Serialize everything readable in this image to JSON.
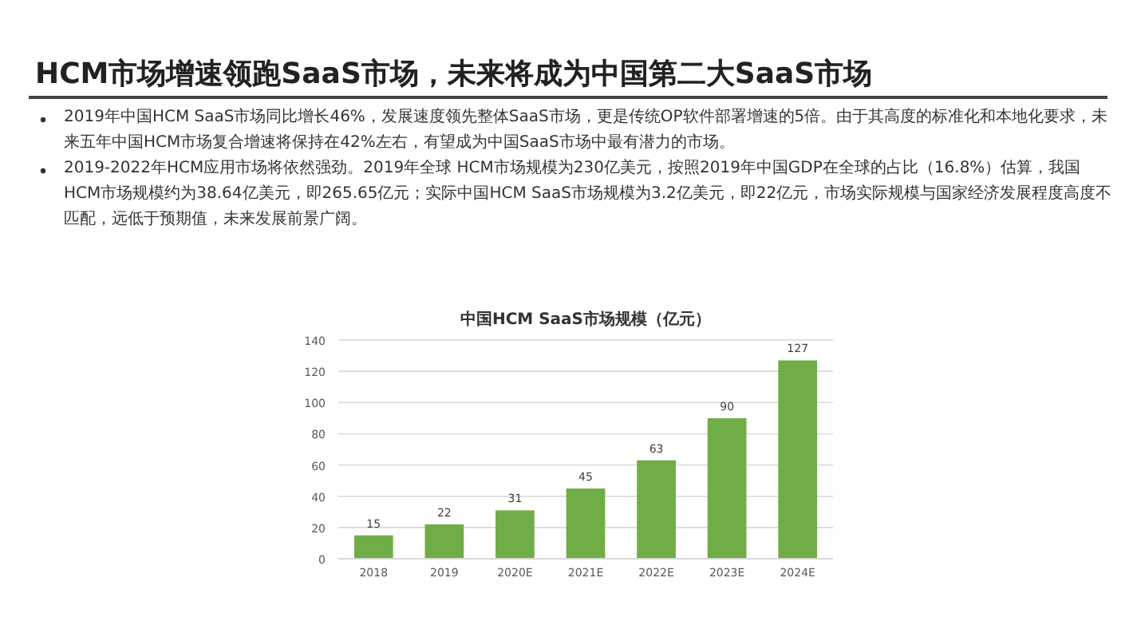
{
  "chart_data": {
    "type": "bar",
    "title": "HCM市场增速领跑SaaS市场，未来将成为中国第二大SaaS市场",
    "subtitle": "中国HCM SaaS市场规模（亿元）",
    "annotations": [
      "2019年中国HCM SaaS市场同比增长46%，发展速度领先整体SaaS市场，更是传统OP软件部署增速的5倍。由于其高度的标准化和本地化要求，未来五年中国HCM市场复合增速将保持在42%左右，有望成为中国SaaS市场中最有潜力的市场。",
      "2019-2022年HCM应用市场将依然强劲。2019年全球 HCM市场规模为230亿美元，按照2019年中国GDP在全球的占比（16.8%）估算，我国HCM市场规模约为38.64亿美元，即265.65亿元；实际中国HCM SaaS市场规模为3.2亿美元，即22亿元，市场实际规模与国家经济发展程度高度不匹配，远低于预期值，未来发展前景广阔。"
    ],
    "categories": [
      "2018",
      "2019",
      "2020E",
      "2021E",
      "2022E",
      "2023E",
      "2024E"
    ],
    "values": [
      15,
      22,
      31,
      45,
      63,
      90,
      127
    ],
    "color": "#70ad47",
    "ylim": [
      0,
      140
    ],
    "yticks": [
      0,
      20,
      40,
      60,
      80,
      100,
      120,
      140
    ],
    "grid": "y",
    "data_labels": true
  }
}
